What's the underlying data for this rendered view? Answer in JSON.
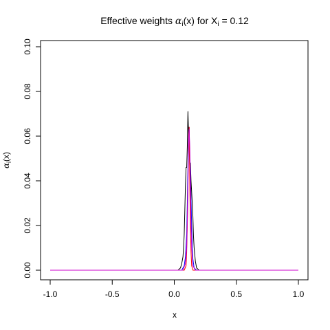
{
  "chart_data": {
    "type": "line",
    "title": "Effective weights α_i(x) for X_i = 0.12",
    "title_parts": {
      "prefix": "Effective weights ",
      "alpha": "α",
      "i1": "i",
      "mid": "(x) for X",
      "i2": "i",
      "suffix": " = 0.12"
    },
    "xlabel": "x",
    "ylabel_parts": {
      "alpha": "α",
      "i": "i",
      "rest": "(x)"
    },
    "xlim": [
      -1.0,
      1.0
    ],
    "ylim": [
      0.0,
      0.1
    ],
    "x_ticks": [
      -1.0,
      -0.5,
      0.0,
      0.5,
      1.0
    ],
    "x_tick_labels": [
      "-1.0",
      "-0.5",
      "0.0",
      "0.5",
      "1.0"
    ],
    "y_ticks": [
      0.0,
      0.02,
      0.04,
      0.06,
      0.08,
      0.1
    ],
    "y_tick_labels": [
      "0.00",
      "0.02",
      "0.04",
      "0.06",
      "0.08",
      "0.10"
    ],
    "grid": false,
    "series": [
      {
        "color": "#000000",
        "x": [
          -1.0,
          0.03,
          0.05,
          0.06,
          0.07,
          0.075,
          0.08,
          0.085,
          0.09,
          0.095,
          0.1,
          0.105,
          0.11,
          0.115,
          0.12,
          0.125,
          0.13,
          0.135,
          0.14,
          0.145,
          0.15,
          0.155,
          0.16,
          0.17,
          0.18,
          0.2,
          0.22,
          1.0
        ],
        "y": [
          0.0,
          0.0,
          0.001,
          0.003,
          0.006,
          0.01,
          0.016,
          0.027,
          0.038,
          0.046,
          0.046,
          0.055,
          0.071,
          0.061,
          0.055,
          0.046,
          0.048,
          0.04,
          0.035,
          0.03,
          0.024,
          0.015,
          0.01,
          0.004,
          0.001,
          0.0,
          0.0,
          0.0
        ]
      },
      {
        "color": "#0000ff",
        "x": [
          -1.0,
          0.06,
          0.08,
          0.09,
          0.1,
          0.105,
          0.11,
          0.115,
          0.12,
          0.125,
          0.13,
          0.135,
          0.14,
          0.145,
          0.15,
          0.16,
          0.18,
          1.0
        ],
        "y": [
          0.0,
          0.0,
          0.002,
          0.006,
          0.016,
          0.03,
          0.046,
          0.06,
          0.064,
          0.05,
          0.044,
          0.032,
          0.02,
          0.01,
          0.005,
          0.001,
          0.0,
          0.0
        ]
      },
      {
        "color": "#ff0000",
        "x": [
          -1.0,
          0.08,
          0.095,
          0.1,
          0.105,
          0.11,
          0.113,
          0.116,
          0.12,
          0.123,
          0.126,
          0.13,
          0.135,
          0.14,
          0.15,
          0.17,
          1.0
        ],
        "y": [
          0.0,
          0.0,
          0.002,
          0.008,
          0.02,
          0.034,
          0.048,
          0.06,
          0.064,
          0.05,
          0.034,
          0.02,
          0.008,
          0.002,
          0.0,
          0.0,
          0.0
        ]
      },
      {
        "color": "#cc00cc",
        "x": [
          -1.0,
          0.07,
          0.09,
          0.1,
          0.105,
          0.11,
          0.115,
          0.12,
          0.125,
          0.13,
          0.135,
          0.14,
          0.15,
          0.17,
          1.0
        ],
        "y": [
          0.0,
          0.0,
          0.003,
          0.01,
          0.022,
          0.038,
          0.055,
          0.063,
          0.055,
          0.036,
          0.02,
          0.01,
          0.002,
          0.0,
          0.0
        ]
      }
    ]
  }
}
